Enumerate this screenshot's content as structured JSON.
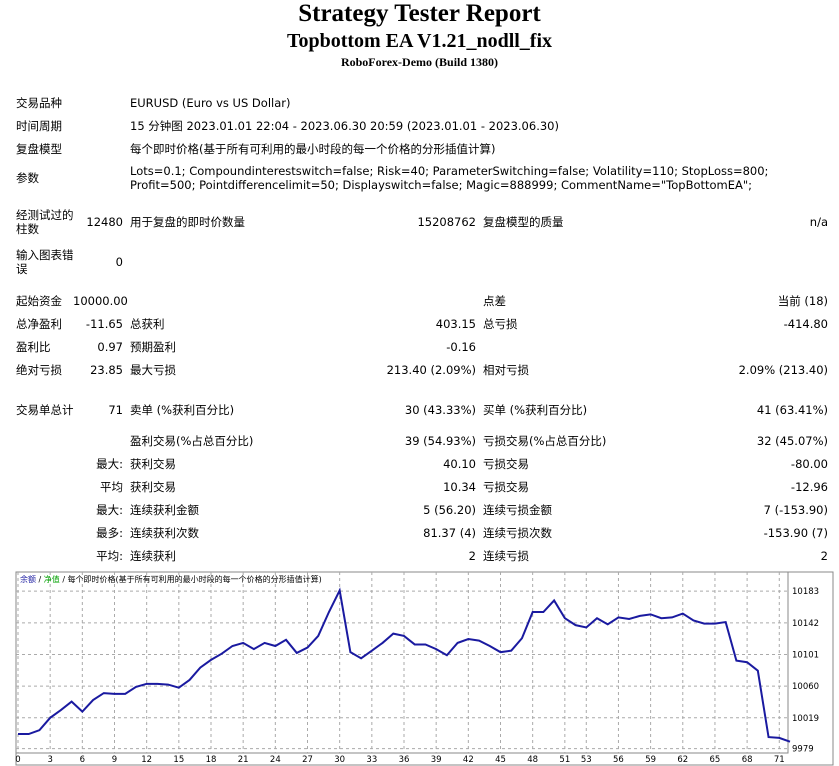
{
  "header": {
    "title": "Strategy Tester Report",
    "subtitle": "Topbottom EA V1.21_nodll_fix",
    "server": "RoboForex-Demo (Build 1380)"
  },
  "table": {
    "rows": [
      {
        "l1": "交易品种",
        "text": "EURUSD (Euro vs US Dollar)"
      },
      {
        "l1": "时间周期",
        "text": "15 分钟图 2023.01.01 22:04 - 2023.06.30 20:59 (2023.01.01 - 2023.06.30)"
      },
      {
        "l1": "复盘模型",
        "text": "每个即时价格(基于所有可利用的最小时段的每一个价格的分形插值计算)"
      },
      {
        "l1": "参数",
        "text": "Lots=0.1; Compoundinterestswitch=false; Risk=40; ParameterSwitching=false; Volatility=110; StopLoss=800; Profit=500; Pointdifferencelimit=50; Displayswitch=false; Magic=888999; CommentName=\"TopBottomEA\";"
      },
      {
        "l1": "经测试过的柱数",
        "v1": "12480",
        "l2": "用于复盘的即时价数量",
        "v2": "15208762",
        "l3": "复盘模型的质量",
        "v3": "n/a"
      },
      {
        "l1": "输入图表错误",
        "v1": "0"
      },
      {
        "l1": "起始资金",
        "v1": "10000.00",
        "l3": "点差",
        "v3": "当前 (18)"
      },
      {
        "l1": "总净盈利",
        "v1": "-11.65",
        "l2": "总获利",
        "v2": "403.15",
        "l3": "总亏损",
        "v3": "-414.80"
      },
      {
        "l1": "盈利比",
        "v1": "0.97",
        "l2": "预期盈利",
        "v2": "-0.16"
      },
      {
        "l1": "绝对亏损",
        "v1": "23.85",
        "l2": "最大亏损",
        "v2": "213.40 (2.09%)",
        "l3": "相对亏损",
        "v3": "2.09% (213.40)"
      },
      {
        "l1": "交易单总计",
        "v1": "71",
        "l2": "卖单 (%获利百分比)",
        "v2": "30 (43.33%)",
        "l3": "买单 (%获利百分比)",
        "v3": "41 (63.41%)"
      },
      {
        "l2": "盈利交易(%占总百分比)",
        "v2": "39 (54.93%)",
        "l3": "亏损交易(%占总百分比)",
        "v3": "32 (45.07%)"
      },
      {
        "v1": "最大:",
        "l2": "获利交易",
        "v2": "40.10",
        "l3": "亏损交易",
        "v3": "-80.00"
      },
      {
        "v1": "平均",
        "l2": "获利交易",
        "v2": "10.34",
        "l3": "亏损交易",
        "v3": "-12.96"
      },
      {
        "v1": "最大:",
        "l2": "连续获利金额",
        "v2": "5 (56.20)",
        "l3": "连续亏损金额",
        "v3": "7 (-153.90)"
      },
      {
        "v1": "最多:",
        "l2": "连续获利次数",
        "v2": "81.37 (4)",
        "l3": "连续亏损次数",
        "v3": "-153.90 (7)"
      },
      {
        "v1": "平均:",
        "l2": "连续获利",
        "v2": "2",
        "l3": "连续亏损",
        "v3": "2"
      }
    ]
  },
  "chart_data": {
    "type": "line",
    "equity_label": "净值",
    "equity_color": "#00a000",
    "model_label": "每个即时价格(基于所有可利用的最小时段的每一个价格的分形插值计算)",
    "series": [
      {
        "name": "余额",
        "color": "#1a1aa0",
        "values": [
          9998,
          9998,
          10003,
          10019,
          10029,
          10040,
          10027,
          10042,
          10051,
          10050,
          10050,
          10059,
          10063,
          10063,
          10062,
          10058,
          10068,
          10084,
          10094,
          10102,
          10112,
          10116,
          10108,
          10116,
          10112,
          10120,
          10103,
          10110,
          10125,
          10156,
          10184,
          10104,
          10096,
          10106,
          10116,
          10128,
          10125,
          10114,
          10114,
          10108,
          10100,
          10116,
          10121,
          10119,
          10112,
          10104,
          10106,
          10122,
          10156,
          10156,
          10171,
          10148,
          10139,
          10136,
          10148,
          10140,
          10149,
          10147,
          10151,
          10153,
          10148,
          10149,
          10154,
          10145,
          10141,
          10141,
          10143,
          10093,
          10091,
          10080,
          9994,
          9993,
          9988
        ]
      }
    ],
    "xlim": [
      0,
      72
    ],
    "xticks": [
      0,
      3,
      6,
      9,
      12,
      15,
      18,
      21,
      24,
      27,
      30,
      33,
      36,
      39,
      42,
      45,
      48,
      51,
      53,
      56,
      59,
      62,
      65,
      68,
      71
    ],
    "ylim": [
      9976,
      10191
    ],
    "yticks": [
      9979,
      10019,
      10060,
      10101,
      10142,
      10183
    ],
    "grid": true
  }
}
